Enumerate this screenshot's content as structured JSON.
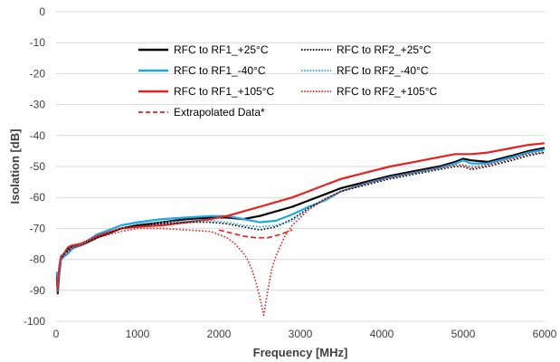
{
  "chart_data": {
    "type": "line",
    "xlabel": "Frequency [MHz]",
    "ylabel": "Isolation [dB]",
    "xlim": [
      0,
      6000
    ],
    "ylim": [
      -100,
      0
    ],
    "xticks": [
      "0",
      "1000",
      "2000",
      "3000",
      "4000",
      "5000",
      "6000"
    ],
    "yticks": [
      "0",
      "-10",
      "-20",
      "-30",
      "-40",
      "-50",
      "-60",
      "-70",
      "-80",
      "-90",
      "-100"
    ],
    "grid": true,
    "legend_position": "upper-left",
    "series": [
      {
        "name": "RFC to RF1_+25°C",
        "color": "#000000",
        "dash": "solid",
        "x": [
          10,
          20,
          40,
          60,
          100,
          150,
          200,
          300,
          500,
          800,
          1000,
          1300,
          1600,
          1900,
          2100,
          2300,
          2500,
          2700,
          2900,
          3100,
          3300,
          3500,
          3800,
          4100,
          4400,
          4700,
          4900,
          5000,
          5100,
          5300,
          5600,
          5800,
          6000
        ],
        "y": [
          -86,
          -91,
          -84,
          -80,
          -78,
          -77,
          -76,
          -75.5,
          -73,
          -70,
          -69,
          -68,
          -67,
          -66.5,
          -66.5,
          -67,
          -66,
          -64.5,
          -63,
          -61,
          -59,
          -57,
          -55,
          -53,
          -51.5,
          -50,
          -48.5,
          -47.5,
          -48,
          -48.5,
          -46.5,
          -45,
          -44
        ]
      },
      {
        "name": "RFC to RF1_-40°C",
        "color": "#1ea7e4",
        "dash": "solid",
        "x": [
          10,
          20,
          40,
          60,
          100,
          150,
          200,
          300,
          500,
          800,
          1000,
          1300,
          1600,
          1900,
          2100,
          2300,
          2500,
          2700,
          2900,
          3100,
          3300,
          3500,
          3800,
          4100,
          4400,
          4700,
          4900,
          5000,
          5100,
          5300,
          5600,
          5800,
          6000
        ],
        "y": [
          -84,
          -90,
          -83,
          -80,
          -79,
          -78,
          -76.5,
          -75.5,
          -72,
          -69,
          -68,
          -67,
          -66.5,
          -66,
          -66,
          -67,
          -68,
          -67.5,
          -65.5,
          -63,
          -61,
          -58,
          -55.5,
          -53.5,
          -52,
          -50.5,
          -49,
          -48,
          -49,
          -49,
          -47,
          -45.5,
          -44.5
        ]
      },
      {
        "name": "RFC to RF1_+105°C",
        "color": "#e8201e",
        "dash": "solid",
        "x": [
          10,
          20,
          40,
          60,
          100,
          150,
          200,
          300,
          500,
          800,
          1000,
          1300,
          1600,
          1900,
          2100,
          2300,
          2500,
          2700,
          2900,
          3100,
          3300,
          3500,
          3800,
          4100,
          4400,
          4700,
          4900,
          5000,
          5100,
          5300,
          5600,
          5800,
          6000
        ],
        "y": [
          -85,
          -89,
          -82,
          -79,
          -78,
          -76,
          -75.5,
          -75,
          -72.5,
          -70,
          -69.5,
          -69,
          -68,
          -67,
          -66,
          -64.5,
          -63,
          -61.5,
          -60,
          -58,
          -56,
          -54,
          -52,
          -50,
          -48.5,
          -47,
          -46,
          -46,
          -46,
          -45.5,
          -44,
          -43,
          -42.5
        ]
      },
      {
        "name": "Extrapolated Data*",
        "color": "#e8201e",
        "dash": "dashed",
        "x": [
          2000,
          2150,
          2300,
          2450,
          2600,
          2750,
          2900
        ],
        "y": [
          -70.5,
          -71.5,
          -72.5,
          -73,
          -73,
          -72,
          -70.5
        ]
      },
      {
        "name": "RFC to RF2_+25°C",
        "color": "#000000",
        "dash": "dotted",
        "x": [
          10,
          20,
          40,
          60,
          100,
          150,
          200,
          300,
          500,
          800,
          1000,
          1300,
          1600,
          1900,
          2100,
          2300,
          2500,
          2700,
          2900,
          3100,
          3300,
          3500,
          3800,
          4100,
          4400,
          4700,
          4900,
          5000,
          5100,
          5300,
          5600,
          5800,
          6000
        ],
        "y": [
          -86,
          -90,
          -83,
          -80,
          -78,
          -76.5,
          -76,
          -75.5,
          -73,
          -70,
          -69,
          -68.5,
          -68,
          -68,
          -68.5,
          -69.5,
          -70.5,
          -69.5,
          -67,
          -63.5,
          -60.5,
          -58,
          -56,
          -54,
          -52.5,
          -51,
          -50,
          -50,
          -51,
          -50,
          -48,
          -46.5,
          -45.5
        ]
      },
      {
        "name": "RFC to RF2_-40°C",
        "color": "#1ea7e4",
        "dash": "dotted",
        "x": [
          10,
          20,
          40,
          60,
          100,
          150,
          200,
          300,
          500,
          800,
          1000,
          1300,
          1600,
          1900,
          2100,
          2300,
          2500,
          2700,
          2900,
          3100,
          3300,
          3500,
          3800,
          4100,
          4400,
          4700,
          4900,
          5000,
          5100,
          5300,
          5600,
          5800,
          6000
        ],
        "y": [
          -85,
          -89,
          -82,
          -79,
          -78,
          -77,
          -76,
          -75.5,
          -72,
          -69,
          -68.5,
          -68,
          -67.5,
          -67.5,
          -68,
          -69,
          -69.5,
          -69,
          -67.5,
          -64,
          -60.5,
          -58,
          -55.5,
          -53.5,
          -52,
          -50.5,
          -49.5,
          -49.5,
          -50,
          -49.5,
          -47.5,
          -46,
          -45
        ]
      },
      {
        "name": "RFC to RF2_+105°C",
        "color": "#e8201e",
        "dash": "dotted",
        "x": [
          10,
          20,
          40,
          60,
          100,
          150,
          200,
          300,
          500,
          800,
          1000,
          1300,
          1600,
          1900,
          2000,
          2100,
          2200,
          2300,
          2350,
          2400,
          2450,
          2500,
          2550,
          2600,
          2650,
          2700,
          2750,
          2800,
          2900,
          3100,
          3300,
          3500,
          3800,
          4100,
          4400,
          4700,
          4900,
          5000,
          5100,
          5300,
          5600,
          5800,
          6000
        ],
        "y": [
          -87,
          -91,
          -84,
          -80,
          -79,
          -77.5,
          -76.5,
          -75.5,
          -73,
          -71,
          -70,
          -70,
          -70.5,
          -71,
          -72,
          -73,
          -75,
          -78,
          -80,
          -83,
          -87,
          -92,
          -98,
          -90,
          -83,
          -79,
          -76,
          -73,
          -69,
          -64,
          -60.5,
          -58,
          -55.5,
          -53.5,
          -52,
          -50.5,
          -49.5,
          -49.5,
          -50.5,
          -49.5,
          -47.5,
          -46,
          -45.5
        ]
      }
    ],
    "legend": [
      [
        {
          "label": "RFC to RF1_+25°C",
          "color": "#000000",
          "dash": "solid"
        },
        {
          "label": "RFC to RF1_-40°C",
          "color": "#1ea7e4",
          "dash": "solid"
        },
        {
          "label": "RFC to RF1_+105°C",
          "color": "#e8201e",
          "dash": "solid"
        },
        {
          "label": "Extrapolated Data*",
          "color": "#e8201e",
          "dash": "dashed"
        }
      ],
      [
        {
          "label": "RFC to RF2_+25°C",
          "color": "#000000",
          "dash": "dotted"
        },
        {
          "label": "RFC to RF2_-40°C",
          "color": "#1ea7e4",
          "dash": "dotted"
        },
        {
          "label": "RFC to RF2_+105°C",
          "color": "#e8201e",
          "dash": "dotted"
        }
      ]
    ]
  }
}
